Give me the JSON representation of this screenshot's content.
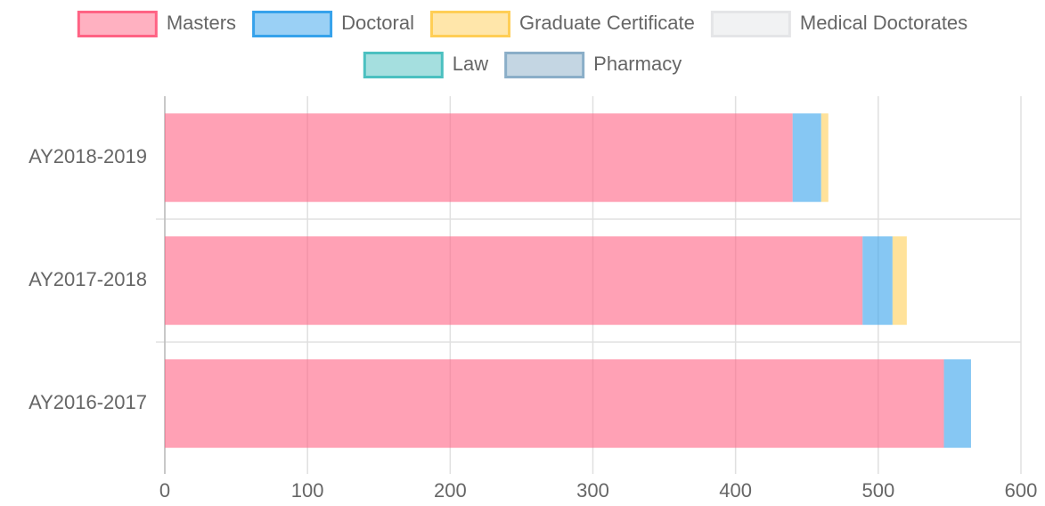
{
  "chart_data": {
    "type": "bar",
    "orientation": "horizontal",
    "stacked": true,
    "categories": [
      "AY2018-2019",
      "AY2017-2018",
      "AY2016-2017"
    ],
    "series": [
      {
        "name": "Masters",
        "color": "#ff6384",
        "values": [
          440,
          489,
          546
        ]
      },
      {
        "name": "Doctoral",
        "color": "#36a2eb",
        "values": [
          20,
          21,
          19
        ]
      },
      {
        "name": "Graduate Certificate",
        "color": "#ffce56",
        "values": [
          5,
          10,
          0
        ]
      },
      {
        "name": "Medical Doctorates",
        "color": "#e4e5e7",
        "values": [
          0,
          0,
          0
        ]
      },
      {
        "name": "Law",
        "color": "#4bc0c0",
        "values": [
          0,
          0,
          0
        ]
      },
      {
        "name": "Pharmacy",
        "color": "#8aaec8",
        "values": [
          0,
          0,
          0
        ]
      }
    ],
    "xlim": [
      0,
      600
    ],
    "xticks": [
      0,
      100,
      200,
      300,
      400,
      500,
      600
    ],
    "grid": true,
    "legend": "top"
  }
}
